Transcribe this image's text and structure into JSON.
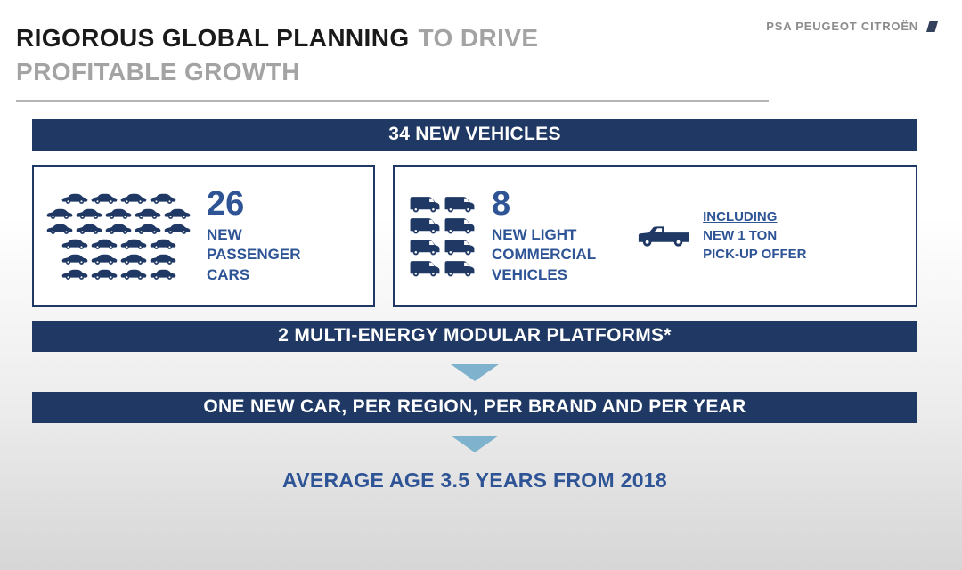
{
  "colors": {
    "navy": "#1f3864",
    "blue_text": "#2e5496",
    "arrow_blue": "#7fb2cc"
  },
  "slide": {
    "title_primary": "RIGOROUS GLOBAL PLANNING",
    "title_secondary_inline": "TO DRIVE",
    "title_secondary_line2": "PROFITABLE GROWTH",
    "logo_text": "PSA PEUGEOT CITROËN"
  },
  "banner_vehicles": {
    "label": "34 NEW VEHICLES"
  },
  "passenger_box": {
    "count": "26",
    "label_lines": [
      "NEW",
      "PASSENGER",
      "CARS"
    ],
    "icon_rows": [
      4,
      5,
      5,
      4,
      4,
      4
    ]
  },
  "commercial_box": {
    "count": "8",
    "label_lines": [
      "NEW LIGHT",
      "COMMERCIAL",
      "VEHICLES"
    ],
    "icon_rows": [
      2,
      2,
      2,
      2
    ],
    "pickup_note_lines": [
      "INCLUDING",
      "NEW 1 TON",
      "PICK-UP OFFER"
    ]
  },
  "banner_platforms": {
    "label": "2 MULTI-ENERGY MODULAR PLATFORMS*"
  },
  "banner_cadence": {
    "label": "ONE NEW CAR, PER REGION, PER BRAND AND PER YEAR"
  },
  "footer": {
    "label": "AVERAGE AGE 3.5 YEARS FROM 2018"
  }
}
